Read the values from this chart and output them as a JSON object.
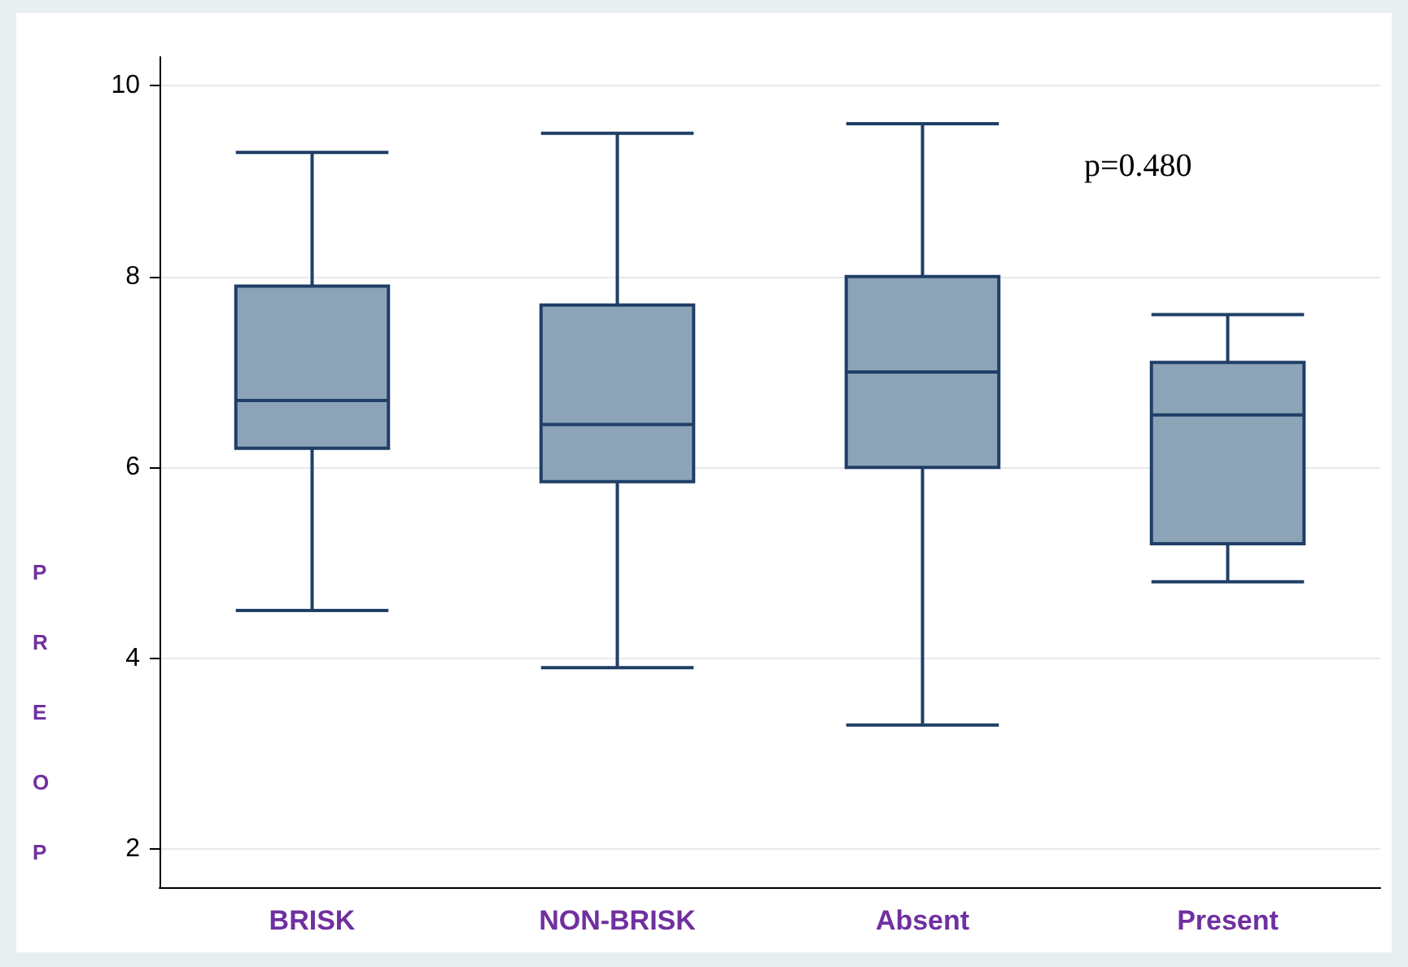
{
  "chart_data": {
    "type": "box",
    "categories": [
      "BRISK",
      "NON-BRISK",
      "Absent",
      "Present"
    ],
    "boxes": [
      {
        "low": 4.5,
        "q1": 6.2,
        "median": 6.7,
        "q3": 7.9,
        "high": 9.3
      },
      {
        "low": 3.9,
        "q1": 5.85,
        "median": 6.45,
        "q3": 7.7,
        "high": 9.5
      },
      {
        "low": 3.3,
        "q1": 6.0,
        "median": 7.0,
        "q3": 8.0,
        "high": 9.6
      },
      {
        "low": 4.8,
        "q1": 5.2,
        "median": 6.55,
        "q3": 7.1,
        "high": 7.6
      }
    ],
    "color": "#8ca3b8",
    "ylabel": "PREOP",
    "ylim": [
      1.6,
      10.3
    ],
    "yticks": [
      2,
      4,
      6,
      8,
      10
    ],
    "grid": "y",
    "annotations": [
      "p=0.480"
    ]
  }
}
